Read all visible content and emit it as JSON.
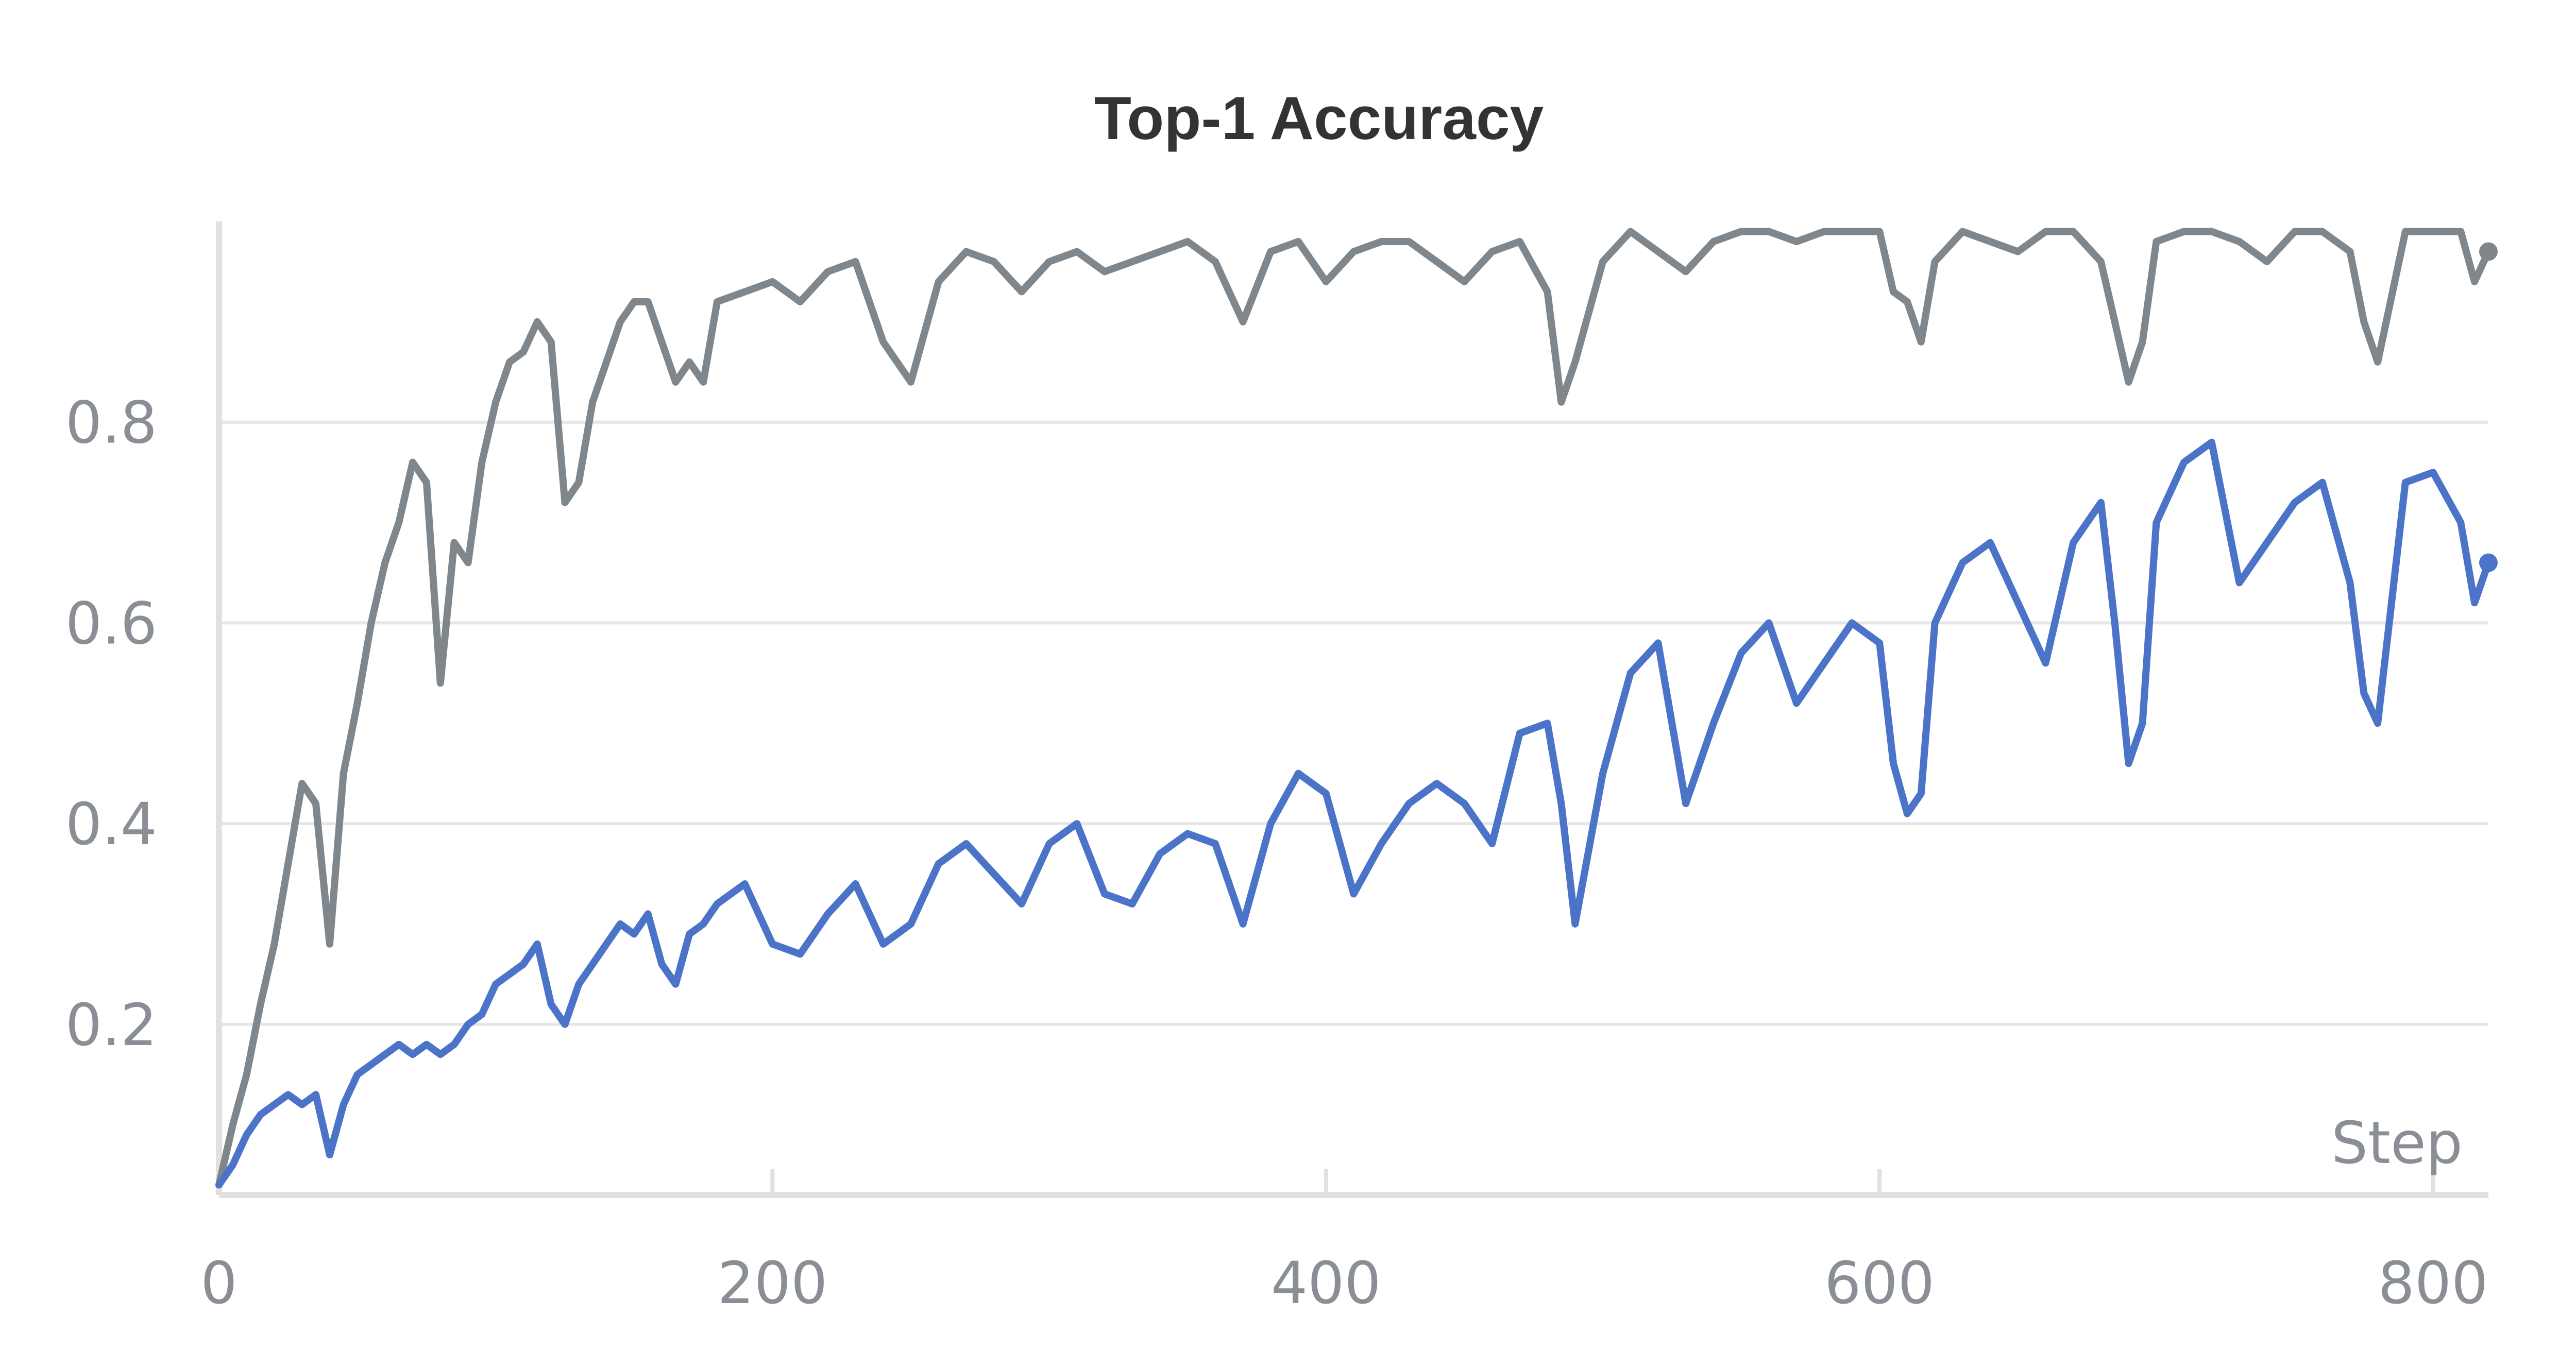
{
  "chart_data": {
    "type": "line",
    "title": "Top-1 Accuracy",
    "xlabel": "Step",
    "ylabel": "",
    "xlim": [
      0,
      820
    ],
    "ylim": [
      0.03,
      1.0
    ],
    "x_ticks": [
      0,
      200,
      400,
      600,
      800
    ],
    "x_tick_labels": [
      "0",
      "200",
      "400",
      "600",
      "800"
    ],
    "y_ticks": [
      0.2,
      0.4,
      0.6,
      0.8
    ],
    "y_tick_labels": [
      "0.2",
      "0.4",
      "0.6",
      "0.8"
    ],
    "grid": true,
    "series": [
      {
        "color": "#7f878d",
        "x": [
          0,
          5,
          10,
          15,
          20,
          25,
          30,
          35,
          40,
          45,
          50,
          55,
          60,
          65,
          70,
          75,
          80,
          85,
          90,
          95,
          100,
          105,
          110,
          115,
          120,
          125,
          130,
          135,
          140,
          145,
          150,
          155,
          160,
          165,
          170,
          175,
          180,
          190,
          200,
          210,
          220,
          230,
          240,
          250,
          260,
          270,
          280,
          290,
          300,
          310,
          320,
          330,
          340,
          350,
          360,
          370,
          380,
          390,
          400,
          410,
          420,
          430,
          440,
          450,
          460,
          470,
          480,
          485,
          490,
          500,
          510,
          520,
          530,
          540,
          550,
          560,
          570,
          580,
          590,
          600,
          605,
          610,
          615,
          620,
          630,
          640,
          650,
          660,
          670,
          680,
          685,
          690,
          695,
          700,
          710,
          720,
          730,
          740,
          750,
          760,
          770,
          775,
          780,
          790,
          800,
          810,
          815,
          820
        ],
        "values": [
          0.04,
          0.1,
          0.15,
          0.22,
          0.28,
          0.36,
          0.44,
          0.42,
          0.28,
          0.45,
          0.52,
          0.6,
          0.66,
          0.7,
          0.76,
          0.74,
          0.54,
          0.68,
          0.66,
          0.76,
          0.82,
          0.86,
          0.87,
          0.9,
          0.88,
          0.72,
          0.74,
          0.82,
          0.86,
          0.9,
          0.92,
          0.92,
          0.88,
          0.84,
          0.86,
          0.84,
          0.92,
          0.93,
          0.94,
          0.92,
          0.95,
          0.96,
          0.88,
          0.84,
          0.94,
          0.97,
          0.96,
          0.93,
          0.96,
          0.97,
          0.95,
          0.96,
          0.97,
          0.98,
          0.96,
          0.9,
          0.97,
          0.98,
          0.94,
          0.97,
          0.98,
          0.98,
          0.96,
          0.94,
          0.97,
          0.98,
          0.93,
          0.82,
          0.86,
          0.96,
          0.99,
          0.97,
          0.95,
          0.98,
          0.99,
          0.99,
          0.98,
          0.99,
          0.99,
          0.99,
          0.93,
          0.92,
          0.88,
          0.96,
          0.99,
          0.98,
          0.97,
          0.99,
          0.99,
          0.96,
          0.9,
          0.84,
          0.88,
          0.98,
          0.99,
          0.99,
          0.98,
          0.96,
          0.99,
          0.99,
          0.97,
          0.9,
          0.86,
          0.99,
          0.99,
          0.99,
          0.94,
          0.97
        ]
      },
      {
        "color": "#4b74c9",
        "x": [
          0,
          5,
          10,
          15,
          20,
          25,
          30,
          35,
          40,
          45,
          50,
          55,
          60,
          65,
          70,
          75,
          80,
          85,
          90,
          95,
          100,
          105,
          110,
          115,
          120,
          125,
          130,
          135,
          140,
          145,
          150,
          155,
          160,
          165,
          170,
          175,
          180,
          190,
          200,
          210,
          220,
          230,
          240,
          250,
          260,
          270,
          280,
          290,
          300,
          310,
          320,
          330,
          340,
          350,
          360,
          370,
          380,
          390,
          400,
          410,
          420,
          430,
          440,
          450,
          460,
          470,
          480,
          485,
          490,
          500,
          510,
          520,
          530,
          540,
          550,
          560,
          570,
          580,
          590,
          600,
          605,
          610,
          615,
          620,
          630,
          640,
          650,
          660,
          670,
          680,
          685,
          690,
          695,
          700,
          710,
          720,
          730,
          740,
          750,
          760,
          770,
          775,
          780,
          790,
          800,
          810,
          815,
          820
        ],
        "values": [
          0.04,
          0.06,
          0.09,
          0.11,
          0.12,
          0.13,
          0.12,
          0.13,
          0.07,
          0.12,
          0.15,
          0.16,
          0.17,
          0.18,
          0.17,
          0.18,
          0.17,
          0.18,
          0.2,
          0.21,
          0.24,
          0.25,
          0.26,
          0.28,
          0.22,
          0.2,
          0.24,
          0.26,
          0.28,
          0.3,
          0.29,
          0.31,
          0.26,
          0.24,
          0.29,
          0.3,
          0.32,
          0.34,
          0.28,
          0.27,
          0.31,
          0.34,
          0.28,
          0.3,
          0.36,
          0.38,
          0.35,
          0.32,
          0.38,
          0.4,
          0.33,
          0.32,
          0.37,
          0.39,
          0.38,
          0.3,
          0.4,
          0.45,
          0.43,
          0.33,
          0.38,
          0.42,
          0.44,
          0.42,
          0.38,
          0.49,
          0.5,
          0.42,
          0.3,
          0.45,
          0.55,
          0.58,
          0.42,
          0.5,
          0.57,
          0.6,
          0.52,
          0.56,
          0.6,
          0.58,
          0.46,
          0.41,
          0.43,
          0.6,
          0.66,
          0.68,
          0.62,
          0.56,
          0.68,
          0.72,
          0.6,
          0.46,
          0.5,
          0.7,
          0.76,
          0.78,
          0.64,
          0.68,
          0.72,
          0.74,
          0.64,
          0.53,
          0.5,
          0.74,
          0.75,
          0.7,
          0.62,
          0.66
        ]
      }
    ]
  }
}
